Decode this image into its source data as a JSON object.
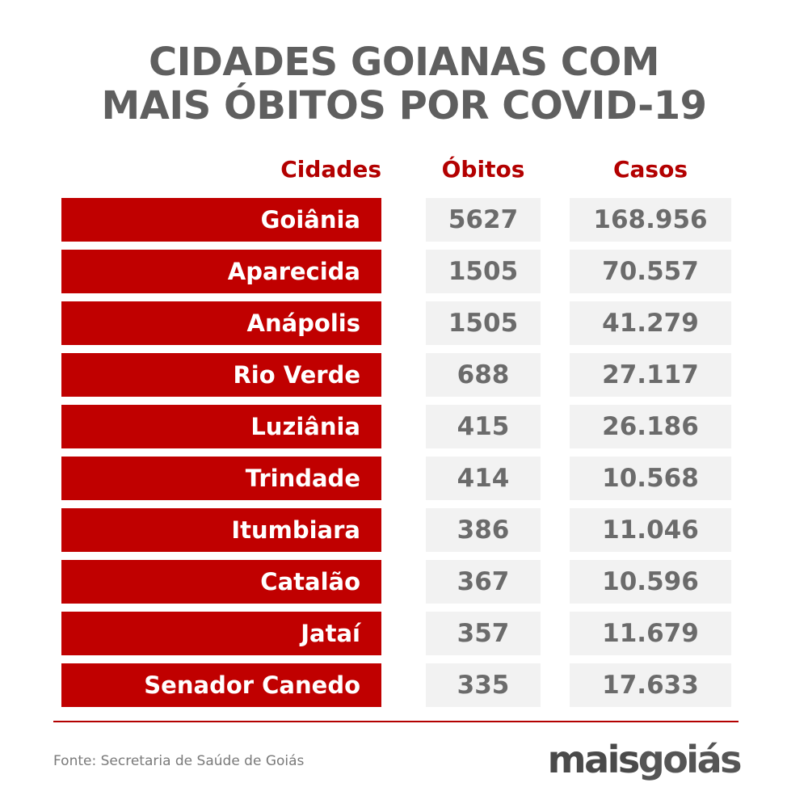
{
  "title": {
    "line1": "CIDADES GOIANAS COM",
    "line2": "MAIS ÓBITOS POR COVID-19"
  },
  "chart_data": {
    "type": "table",
    "title": "CIDADES GOIANAS COM MAIS ÓBITOS POR COVID-19",
    "columns": [
      "Cidades",
      "Óbitos",
      "Casos"
    ],
    "rows": [
      {
        "city": "Goiânia",
        "deaths": "5627",
        "cases": "168.956"
      },
      {
        "city": "Aparecida",
        "deaths": "1505",
        "cases": "70.557"
      },
      {
        "city": "Anápolis",
        "deaths": "1505",
        "cases": "41.279"
      },
      {
        "city": "Rio Verde",
        "deaths": "688",
        "cases": "27.117"
      },
      {
        "city": "Luziânia",
        "deaths": "415",
        "cases": "26.186"
      },
      {
        "city": "Trindade",
        "deaths": "414",
        "cases": "10.568"
      },
      {
        "city": "Itumbiara",
        "deaths": "386",
        "cases": "11.046"
      },
      {
        "city": "Catalão",
        "deaths": "367",
        "cases": "10.596"
      },
      {
        "city": "Jataí",
        "deaths": "357",
        "cases": "11.679"
      },
      {
        "city": "Senador Canedo",
        "deaths": "335",
        "cases": "17.633"
      }
    ]
  },
  "footer": {
    "source": "Fonte: Secretaria de Saúde de Goiás"
  },
  "logo": {
    "part1": "mais",
    "part2": "goiás"
  },
  "colors": {
    "accent": "#c00000",
    "header_text": "#b30000",
    "title_text": "#5f5f5f",
    "value_text": "#6b6b6b",
    "value_bg": "#f2f2f2"
  }
}
